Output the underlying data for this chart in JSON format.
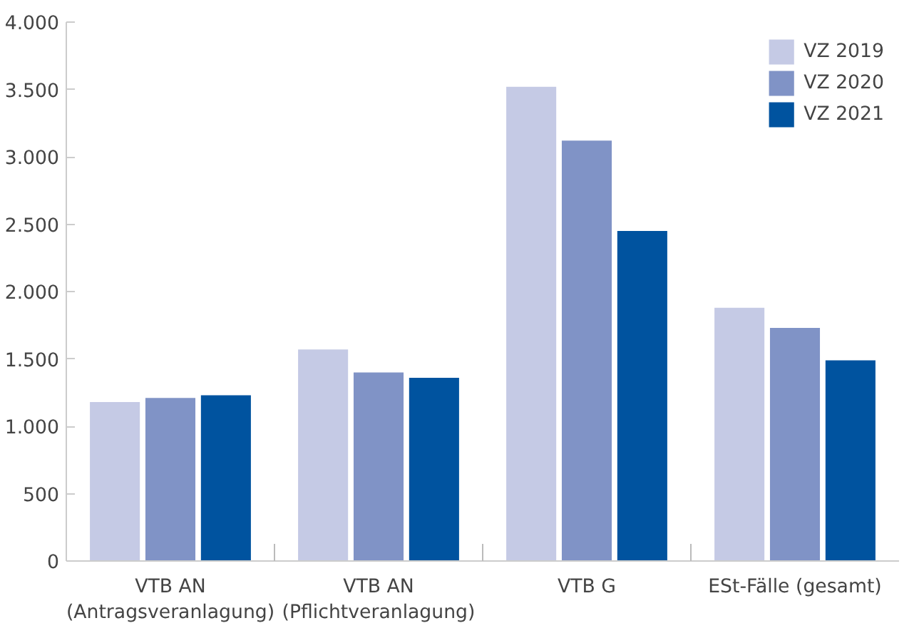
{
  "chart_data": {
    "type": "bar",
    "categories": [
      "VTB AN\n(Antragsveranlagung)",
      "VTB AN\n(Pflichtveranlagung)",
      "VTB G",
      "ESt-Fälle (gesamt)"
    ],
    "series": [
      {
        "name": "VZ 2019",
        "color": "#c5cae5",
        "values": [
          1180,
          1570,
          3520,
          1880
        ]
      },
      {
        "name": "VZ 2020",
        "color": "#8093c6",
        "values": [
          1210,
          1400,
          3120,
          1730
        ]
      },
      {
        "name": "VZ 2021",
        "color": "#00539f",
        "values": [
          1230,
          1360,
          2450,
          1490
        ]
      }
    ],
    "ylim": [
      0,
      4000
    ],
    "yticks": [
      {
        "value": 0,
        "label": "0"
      },
      {
        "value": 500,
        "label": "500"
      },
      {
        "value": 1000,
        "label": "1.000"
      },
      {
        "value": 1500,
        "label": "1.500"
      },
      {
        "value": 2000,
        "label": "2.000"
      },
      {
        "value": 2500,
        "label": "2.500"
      },
      {
        "value": 3000,
        "label": "3.000"
      },
      {
        "value": 3500,
        "label": "3.500"
      },
      {
        "value": 4000,
        "label": "4.000"
      }
    ],
    "grid": false,
    "legend": "top right"
  }
}
